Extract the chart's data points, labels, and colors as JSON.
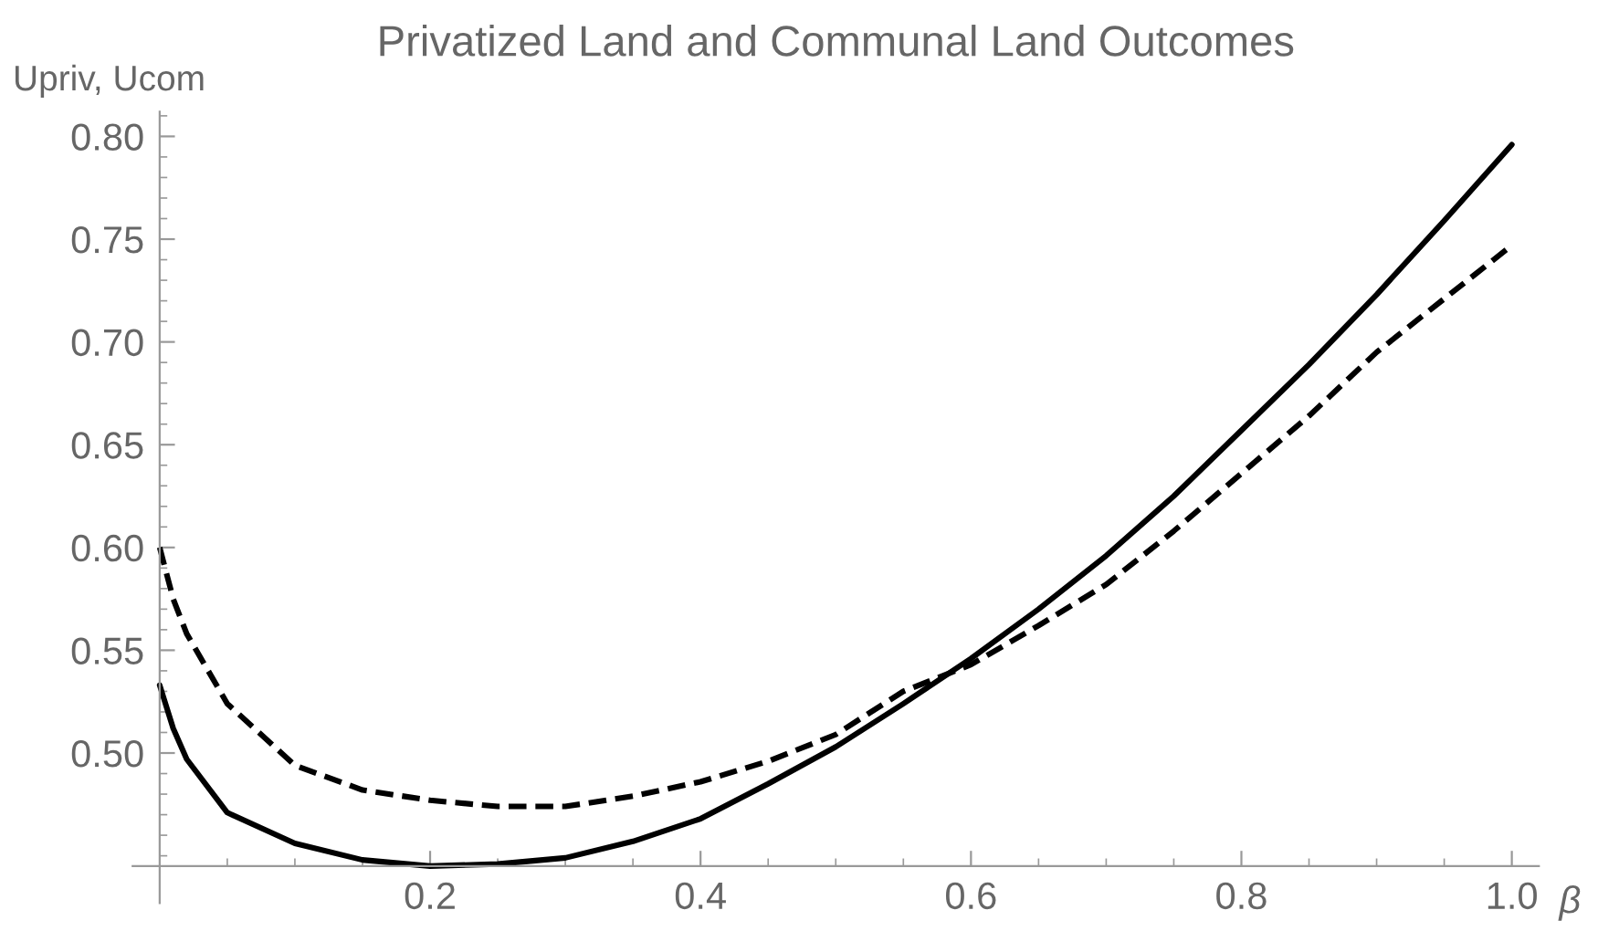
{
  "chart_data": {
    "type": "line",
    "title": "Privatized Land and Communal Land Outcomes",
    "xlabel": "β",
    "ylabel": "Upriv, Ucom",
    "x": [
      0,
      0.01,
      0.02,
      0.05,
      0.1,
      0.15,
      0.2,
      0.25,
      0.3,
      0.35,
      0.4,
      0.45,
      0.5,
      0.55,
      0.6,
      0.65,
      0.7,
      0.75,
      0.8,
      0.85,
      0.9,
      0.95,
      1.0
    ],
    "series": [
      {
        "color": "#000000",
        "line_style": "solid",
        "values": [
          0.533,
          0.512,
          0.497,
          0.471,
          0.456,
          0.448,
          0.445,
          0.446,
          0.449,
          0.457,
          0.468,
          0.485,
          0.503,
          0.524,
          0.546,
          0.57,
          0.596,
          0.625,
          0.657,
          0.689,
          0.723,
          0.759,
          0.796
        ]
      },
      {
        "color": "#000000",
        "line_style": "dashed",
        "values": [
          0.6,
          0.575,
          0.558,
          0.524,
          0.494,
          0.482,
          0.477,
          0.474,
          0.474,
          0.479,
          0.486,
          0.496,
          0.509,
          0.53,
          0.543,
          0.562,
          0.582,
          0.608,
          0.636,
          0.664,
          0.695,
          0.721,
          0.747
        ]
      }
    ],
    "xlim": [
      -0.02,
      1.02
    ],
    "ylim": [
      0.427,
      0.812
    ],
    "xticks": [
      0.2,
      0.4,
      0.6,
      0.8,
      {
        "value": 1.0,
        "label": "1.0"
      }
    ],
    "yticks": [
      {
        "value": 0.5,
        "label": "0.50"
      },
      0.55,
      {
        "value": 0.6,
        "label": "0.60"
      },
      0.65,
      {
        "value": 0.7,
        "label": "0.70"
      },
      0.75,
      {
        "value": 0.8,
        "label": "0.80"
      }
    ],
    "grid": false,
    "legend": false,
    "marker": "none"
  }
}
